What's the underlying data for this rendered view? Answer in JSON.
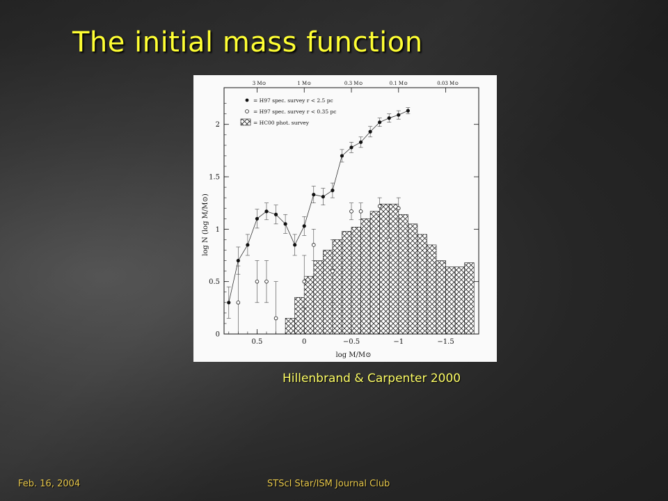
{
  "slide": {
    "title": "The initial mass function",
    "citation": "Hillenbrand & Carpenter 2000",
    "footer_date": "Feb. 16, 2004",
    "footer_event": "STScI Star/ISM Journal Club"
  },
  "chart_data": {
    "type": "line",
    "xlabel": "log M/M⊙",
    "ylabel": "log N (log M/M⊙)",
    "xlim": [
      0.85,
      -1.85
    ],
    "ylim": [
      0,
      2.35
    ],
    "x_ticks": [
      0.5,
      0,
      -0.5,
      -1,
      -1.5
    ],
    "x_tick_labels": [
      "0.5",
      "0",
      "−0.5",
      "−1",
      "−1.5"
    ],
    "y_ticks": [
      0,
      0.5,
      1,
      1.5,
      2
    ],
    "y_tick_labels": [
      "0",
      "0.5",
      "1",
      "1.5",
      "2"
    ],
    "top_axis": {
      "ticks": [
        0.477,
        0,
        -0.523,
        -1,
        -1.523
      ],
      "labels": [
        "3 M⊙",
        "1 M⊙",
        "0.3 M⊙",
        "0.1 M⊙",
        "0.03 M⊙"
      ]
    },
    "legend_position": "top-left",
    "series": [
      {
        "name": "= H97 spec. survey r < 2.5 pc",
        "marker": "filled-circle",
        "connected": true,
        "x": [
          0.8,
          0.7,
          0.6,
          0.5,
          0.4,
          0.3,
          0.2,
          0.1,
          0.0,
          -0.1,
          -0.2,
          -0.3,
          -0.4,
          -0.5,
          -0.6,
          -0.7,
          -0.8,
          -0.9,
          -1.0,
          -1.1
        ],
        "y": [
          0.3,
          0.7,
          0.85,
          1.1,
          1.17,
          1.14,
          1.05,
          0.85,
          1.03,
          1.33,
          1.31,
          1.37,
          1.7,
          1.78,
          1.83,
          1.93,
          2.02,
          2.06,
          2.09,
          2.13
        ],
        "err": [
          0.15,
          0.13,
          0.1,
          0.09,
          0.08,
          0.09,
          0.09,
          0.1,
          0.09,
          0.08,
          0.08,
          0.07,
          0.06,
          0.05,
          0.05,
          0.05,
          0.04,
          0.04,
          0.04,
          0.03
        ]
      },
      {
        "name": "= H97 spec. survey r < 0.35 pc",
        "marker": "open-circle",
        "connected": false,
        "x": [
          0.7,
          0.5,
          0.4,
          0.3,
          0.0,
          -0.1,
          -0.3,
          -0.5,
          -0.6,
          -0.8,
          -0.9,
          -1.0
        ],
        "y": [
          0.3,
          0.5,
          0.5,
          0.15,
          0.5,
          0.85,
          0.6,
          1.17,
          1.17,
          1.22,
          0.9,
          1.2
        ],
        "err": [
          0.35,
          0.2,
          0.2,
          0.35,
          0.25,
          0.15,
          0.3,
          0.08,
          0.08,
          0.08,
          0.15,
          0.1
        ]
      }
    ],
    "histogram": {
      "name": "= HC00 phot. survey",
      "fill": "crosshatch",
      "bin_width": 0.1,
      "bin_starts": [
        0.2,
        0.1,
        0.0,
        -0.1,
        -0.2,
        -0.3,
        -0.4,
        -0.5,
        -0.6,
        -0.7,
        -0.8,
        -0.9,
        -1.0,
        -1.1,
        -1.2,
        -1.3,
        -1.4,
        -1.5,
        -1.6,
        -1.7
      ],
      "values": [
        0.15,
        0.35,
        0.55,
        0.7,
        0.8,
        0.9,
        0.98,
        1.02,
        1.1,
        1.17,
        1.24,
        1.24,
        1.14,
        1.05,
        0.95,
        0.85,
        0.7,
        0.64,
        0.64,
        0.68
      ]
    }
  }
}
